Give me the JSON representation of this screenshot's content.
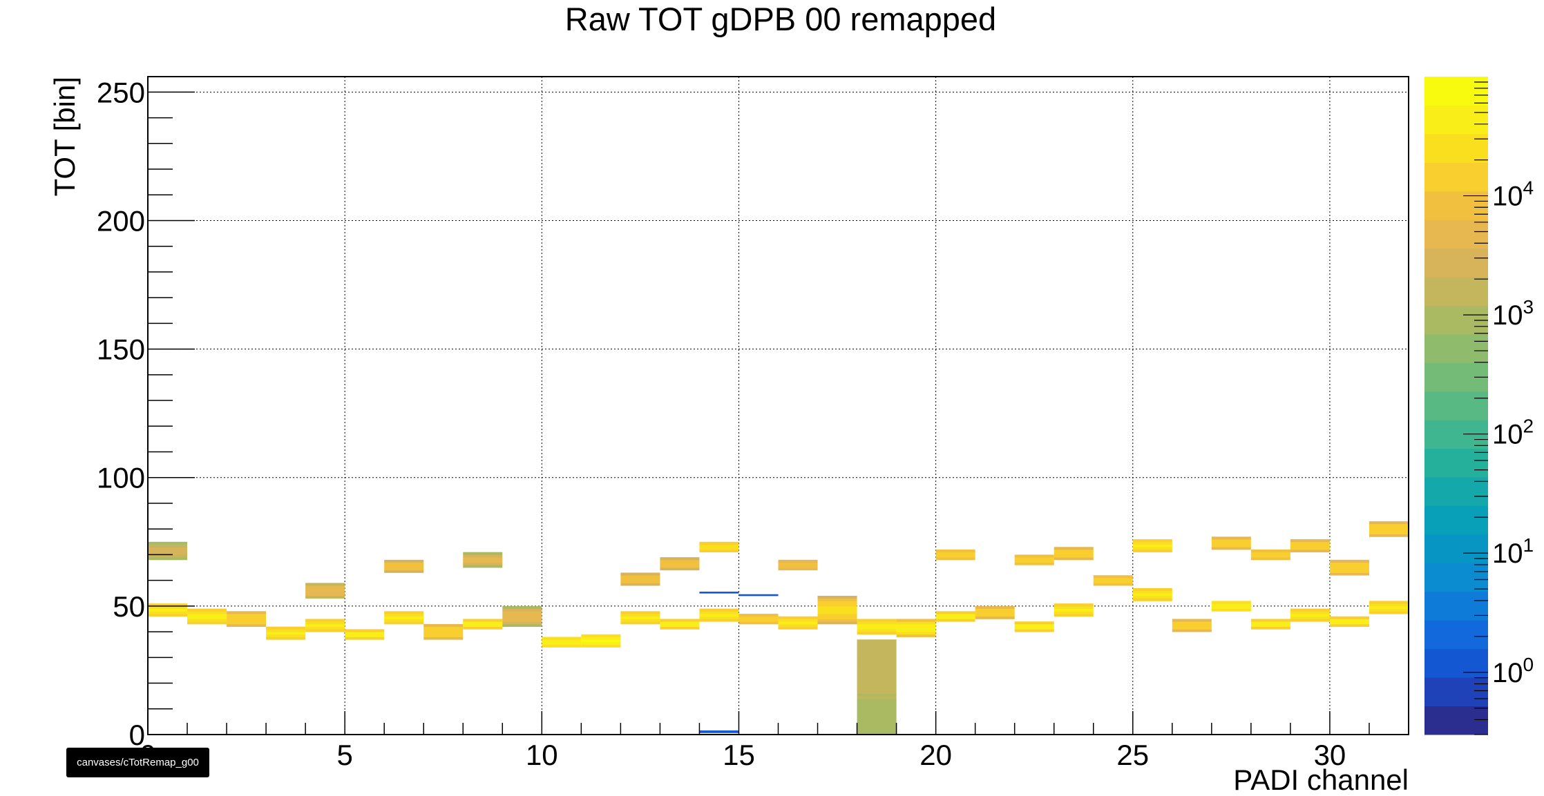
{
  "chart_data": {
    "type": "heatmap",
    "title": "Raw TOT gDPB 00 remapped",
    "xlabel": "PADI channel",
    "ylabel": "TOT [bin]",
    "xlim": [
      0,
      32
    ],
    "ylim": [
      0,
      256
    ],
    "x_ticks": [
      0,
      5,
      10,
      15,
      20,
      25,
      30
    ],
    "y_ticks": [
      0,
      50,
      100,
      150,
      200,
      250
    ],
    "grid": true,
    "z_scale": "log",
    "z_range": [
      0.3,
      100000
    ],
    "z_ticks": [
      {
        "base": "10",
        "exp": "0",
        "value": 1
      },
      {
        "base": "10",
        "exp": "1",
        "value": 10
      },
      {
        "base": "10",
        "exp": "2",
        "value": 100
      },
      {
        "base": "10",
        "exp": "3",
        "value": 1000
      },
      {
        "base": "10",
        "exp": "4",
        "value": 10000
      }
    ],
    "palette": [
      "#2c2e8f",
      "#1f42b8",
      "#1357d2",
      "#1269dc",
      "#0e7bd8",
      "#0b8bd0",
      "#0796c4",
      "#08a0b8",
      "#14a8aa",
      "#25b09c",
      "#3fb68f",
      "#58b983",
      "#74bb77",
      "#8fbb6c",
      "#aaba63",
      "#c4b65d",
      "#d7b35a",
      "#e6b84f",
      "#f1c03e",
      "#f8cf2e",
      "#fadf1f",
      "#f9ee18",
      "#f9fb0e"
    ],
    "bands": [
      {
        "ch": 0,
        "lo": 68,
        "hi": 75,
        "peak": 3000,
        "upper_only": false
      },
      {
        "ch": 0,
        "lo": 46,
        "hi": 51,
        "peak": 40000,
        "upper_only": false
      },
      {
        "ch": 1,
        "lo": 43,
        "hi": 49,
        "peak": 40000,
        "upper_only": false
      },
      {
        "ch": 2,
        "lo": 42,
        "hi": 48,
        "peak": 15000,
        "upper_only": false
      },
      {
        "ch": 3,
        "lo": 37,
        "hi": 42,
        "peak": 40000,
        "upper_only": false
      },
      {
        "ch": 4,
        "lo": 53,
        "hi": 59,
        "peak": 5000,
        "upper_only": false
      },
      {
        "ch": 4,
        "lo": 40,
        "hi": 45,
        "peak": 40000,
        "upper_only": false
      },
      {
        "ch": 5,
        "lo": 37,
        "hi": 41,
        "peak": 40000,
        "upper_only": false
      },
      {
        "ch": 6,
        "lo": 63,
        "hi": 68,
        "peak": 10000,
        "upper_only": false
      },
      {
        "ch": 6,
        "lo": 43,
        "hi": 48,
        "peak": 40000,
        "upper_only": false
      },
      {
        "ch": 7,
        "lo": 37,
        "hi": 43,
        "peak": 15000,
        "upper_only": false
      },
      {
        "ch": 8,
        "lo": 65,
        "hi": 71,
        "peak": 4000,
        "upper_only": false
      },
      {
        "ch": 8,
        "lo": 41,
        "hi": 45,
        "peak": 40000,
        "upper_only": false
      },
      {
        "ch": 9,
        "lo": 42,
        "hi": 50,
        "peak": 5000,
        "upper_only": false
      },
      {
        "ch": 10,
        "lo": 34,
        "hi": 38,
        "peak": 60000,
        "upper_only": false
      },
      {
        "ch": 11,
        "lo": 34,
        "hi": 39,
        "peak": 60000,
        "upper_only": false
      },
      {
        "ch": 12,
        "lo": 58,
        "hi": 63,
        "peak": 8000,
        "upper_only": false
      },
      {
        "ch": 12,
        "lo": 43,
        "hi": 48,
        "peak": 40000,
        "upper_only": false
      },
      {
        "ch": 13,
        "lo": 64,
        "hi": 69,
        "peak": 10000,
        "upper_only": false
      },
      {
        "ch": 13,
        "lo": 41,
        "hi": 45,
        "peak": 40000,
        "upper_only": false
      },
      {
        "ch": 14,
        "lo": 71,
        "hi": 75,
        "peak": 30000,
        "upper_only": false
      },
      {
        "ch": 14,
        "lo": 44,
        "hi": 49,
        "peak": 40000,
        "upper_only": false
      },
      {
        "ch": 14,
        "lo": 55,
        "hi": 55.6,
        "peak": 1,
        "upper_only": false
      },
      {
        "ch": 14,
        "lo": 0.7,
        "hi": 1.6,
        "peak": 1,
        "upper_only": false
      },
      {
        "ch": 15,
        "lo": 43,
        "hi": 47,
        "peak": 15000,
        "upper_only": false
      },
      {
        "ch": 15,
        "lo": 54,
        "hi": 54.6,
        "peak": 1,
        "upper_only": false
      },
      {
        "ch": 16,
        "lo": 64,
        "hi": 68,
        "peak": 10000,
        "upper_only": false
      },
      {
        "ch": 16,
        "lo": 41,
        "hi": 46,
        "peak": 40000,
        "upper_only": false
      },
      {
        "ch": 17,
        "lo": 43,
        "hi": 54,
        "peak": 20000,
        "upper_only": false
      },
      {
        "ch": 18,
        "lo": 39,
        "hi": 45,
        "peak": 40000,
        "upper_only": false
      },
      {
        "ch": 18,
        "lo": 0,
        "hi": 37,
        "peak": 1500,
        "upper_only": true
      },
      {
        "ch": 19,
        "lo": 38,
        "hi": 45,
        "peak": 40000,
        "upper_only": false
      },
      {
        "ch": 20,
        "lo": 68,
        "hi": 72,
        "peak": 15000,
        "upper_only": false
      },
      {
        "ch": 20,
        "lo": 44,
        "hi": 48,
        "peak": 40000,
        "upper_only": false
      },
      {
        "ch": 21,
        "lo": 45,
        "hi": 50,
        "peak": 15000,
        "upper_only": false
      },
      {
        "ch": 22,
        "lo": 66,
        "hi": 70,
        "peak": 15000,
        "upper_only": false
      },
      {
        "ch": 22,
        "lo": 40,
        "hi": 44,
        "peak": 40000,
        "upper_only": false
      },
      {
        "ch": 23,
        "lo": 68,
        "hi": 73,
        "peak": 15000,
        "upper_only": false
      },
      {
        "ch": 23,
        "lo": 46,
        "hi": 51,
        "peak": 40000,
        "upper_only": false
      },
      {
        "ch": 24,
        "lo": 58,
        "hi": 62,
        "peak": 15000,
        "upper_only": false
      },
      {
        "ch": 25,
        "lo": 71,
        "hi": 76,
        "peak": 40000,
        "upper_only": false
      },
      {
        "ch": 25,
        "lo": 52,
        "hi": 57,
        "peak": 40000,
        "upper_only": false
      },
      {
        "ch": 26,
        "lo": 40,
        "hi": 45,
        "peak": 15000,
        "upper_only": false
      },
      {
        "ch": 27,
        "lo": 72,
        "hi": 77,
        "peak": 15000,
        "upper_only": false
      },
      {
        "ch": 27,
        "lo": 48,
        "hi": 52,
        "peak": 60000,
        "upper_only": false
      },
      {
        "ch": 28,
        "lo": 68,
        "hi": 72,
        "peak": 15000,
        "upper_only": false
      },
      {
        "ch": 28,
        "lo": 41,
        "hi": 45,
        "peak": 40000,
        "upper_only": false
      },
      {
        "ch": 29,
        "lo": 71,
        "hi": 76,
        "peak": 15000,
        "upper_only": false
      },
      {
        "ch": 29,
        "lo": 44,
        "hi": 49,
        "peak": 40000,
        "upper_only": false
      },
      {
        "ch": 30,
        "lo": 62,
        "hi": 68,
        "peak": 15000,
        "upper_only": false
      },
      {
        "ch": 30,
        "lo": 42,
        "hi": 46,
        "peak": 40000,
        "upper_only": false
      },
      {
        "ch": 31,
        "lo": 77,
        "hi": 83,
        "peak": 15000,
        "upper_only": false
      },
      {
        "ch": 31,
        "lo": 47,
        "hi": 52,
        "peak": 40000,
        "upper_only": false
      }
    ]
  },
  "canvas_tag": "canvases/cTotRemap_g00"
}
